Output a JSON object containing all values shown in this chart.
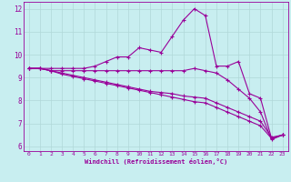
{
  "xlabel": "Windchill (Refroidissement éolien,°C)",
  "x": [
    0,
    1,
    2,
    3,
    4,
    5,
    6,
    7,
    8,
    9,
    10,
    11,
    12,
    13,
    14,
    15,
    16,
    17,
    18,
    19,
    20,
    21,
    22,
    23
  ],
  "line1": [
    9.4,
    9.4,
    9.4,
    9.4,
    9.4,
    9.4,
    9.5,
    9.7,
    9.9,
    9.9,
    10.3,
    10.2,
    10.1,
    10.8,
    11.5,
    12.0,
    11.7,
    9.5,
    9.5,
    9.7,
    8.3,
    8.1,
    6.35,
    6.5
  ],
  "line2": [
    9.4,
    9.4,
    9.3,
    9.3,
    9.3,
    9.3,
    9.3,
    9.3,
    9.3,
    9.3,
    9.3,
    9.3,
    9.3,
    9.3,
    9.3,
    9.4,
    9.3,
    9.2,
    8.9,
    8.5,
    8.1,
    7.5,
    6.3,
    6.5
  ],
  "line3": [
    9.4,
    9.4,
    9.3,
    9.2,
    9.1,
    9.0,
    8.9,
    8.8,
    8.7,
    8.6,
    8.5,
    8.4,
    8.35,
    8.3,
    8.2,
    8.15,
    8.1,
    7.9,
    7.7,
    7.5,
    7.3,
    7.1,
    6.4,
    6.5
  ],
  "line4": [
    9.4,
    9.4,
    9.3,
    9.15,
    9.05,
    8.95,
    8.85,
    8.75,
    8.65,
    8.55,
    8.45,
    8.35,
    8.25,
    8.15,
    8.05,
    7.95,
    7.9,
    7.7,
    7.5,
    7.3,
    7.1,
    6.9,
    6.35,
    6.5
  ],
  "color": "#990099",
  "bg_color": "#c8eef0",
  "grid_color": "#b0d8d8",
  "ylim": [
    5.8,
    12.3
  ],
  "yticks": [
    6,
    7,
    8,
    9,
    10,
    11,
    12
  ],
  "xticks": [
    0,
    1,
    2,
    3,
    4,
    5,
    6,
    7,
    8,
    9,
    10,
    11,
    12,
    13,
    14,
    15,
    16,
    17,
    18,
    19,
    20,
    21,
    22,
    23
  ]
}
